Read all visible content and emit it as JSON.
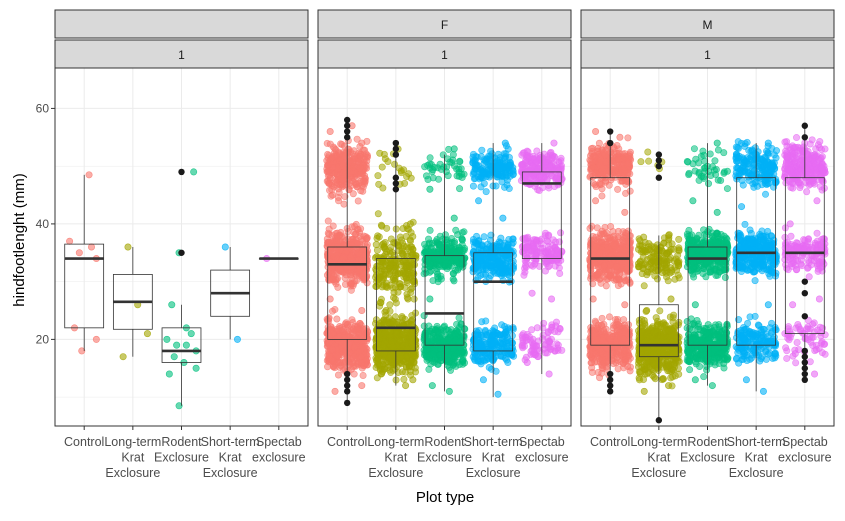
{
  "chart_data": {
    "type": "boxplot-jitter",
    "xlabel": "Plot type",
    "ylabel": "hindfootlenght (mm)",
    "ylim": [
      5,
      67
    ],
    "yticks": [
      20,
      40,
      60
    ],
    "grid": true,
    "legend": "none",
    "categories": [
      {
        "key": "Control",
        "lines": [
          "Control"
        ],
        "color": "#F8766D"
      },
      {
        "key": "Long-term Krat Exclosure",
        "lines": [
          "Long-term",
          "Krat",
          "Exclosure"
        ],
        "color": "#A3A500"
      },
      {
        "key": "Rodent Exclosure",
        "lines": [
          "Rodent",
          "Exclosure"
        ],
        "color": "#00BF7D"
      },
      {
        "key": "Short-term Krat Exclosure",
        "lines": [
          "Short-term",
          "Krat",
          "Exclosure"
        ],
        "color": "#00B0F6"
      },
      {
        "key": "Spectab exclosure",
        "lines": [
          "Spectab",
          "exclosure"
        ],
        "color": "#E76BF3"
      }
    ],
    "panels": [
      {
        "strip_top": "",
        "strip_bottom": "1",
        "groups": [
          {
            "q1": 22,
            "median": 34,
            "q3": 36.5,
            "lo": 18,
            "hi": 48.5,
            "outliers": [],
            "clusters": [],
            "points": [
              [
                37,
                -0.3
              ],
              [
                34,
                0.25
              ],
              [
                22,
                -0.2
              ],
              [
                20,
                0.25
              ],
              [
                18,
                -0.05
              ],
              [
                48.5,
                0.1
              ],
              [
                36,
                0.15
              ],
              [
                35,
                -0.1
              ]
            ]
          },
          {
            "q1": 21.75,
            "median": 26.5,
            "q3": 31.25,
            "lo": 17,
            "hi": 36,
            "outliers": [],
            "clusters": [],
            "points": [
              [
                36,
                -0.1
              ],
              [
                17,
                -0.2
              ],
              [
                21,
                0.3
              ],
              [
                26,
                0.1
              ]
            ]
          },
          {
            "q1": 16,
            "median": 18,
            "q3": 22,
            "lo": 8.5,
            "hi": 26,
            "outliers": [
              35,
              49
            ],
            "clusters": [],
            "points": [
              [
                49,
                0.25
              ],
              [
                35,
                -0.05
              ],
              [
                26,
                -0.2
              ],
              [
                22,
                0.1
              ],
              [
                20,
                -0.3
              ],
              [
                19,
                0.1
              ],
              [
                18,
                0.3
              ],
              [
                17,
                -0.15
              ],
              [
                16,
                0.05
              ],
              [
                15,
                0.3
              ],
              [
                14,
                -0.25
              ],
              [
                8.5,
                -0.05
              ],
              [
                21,
                0.2
              ],
              [
                19,
                -0.1
              ]
            ]
          },
          {
            "q1": 24,
            "median": 28,
            "q3": 32,
            "lo": 20,
            "hi": 36,
            "outliers": [],
            "clusters": [],
            "points": [
              [
                36,
                -0.1
              ],
              [
                20,
                0.15
              ]
            ]
          },
          {
            "q1": 34,
            "median": 34,
            "q3": 34,
            "lo": 34,
            "hi": 34,
            "outliers": [],
            "clusters": [],
            "points": [
              [
                34,
                -0.25
              ]
            ]
          }
        ]
      },
      {
        "strip_top": "F",
        "strip_bottom": "1",
        "groups": [
          {
            "q1": 20,
            "median": 33,
            "q3": 36,
            "lo": 9,
            "hi": 58,
            "outliers": [
              9,
              11,
              12,
              13,
              14,
              55,
              56,
              57,
              58
            ],
            "clusters": [
              {
                "center": 49.5,
                "spread": 3.5,
                "n": 300
              },
              {
                "center": 34,
                "spread": 4,
                "n": 420
              },
              {
                "center": 19,
                "spread": 3.5,
                "n": 400
              }
            ],
            "points": [
              [
                54,
                0.3
              ],
              [
                56,
                -0.35
              ],
              [
                57,
                0.1
              ],
              [
                45,
                -0.3
              ],
              [
                25,
                0.3
              ],
              [
                27,
                -0.35
              ],
              [
                12,
                0.3
              ],
              [
                11,
                -0.25
              ]
            ]
          },
          {
            "q1": 18,
            "median": 22,
            "q3": 34,
            "lo": 12,
            "hi": 52,
            "outliers": [
              46,
              47,
              48,
              52,
              53,
              54
            ],
            "clusters": [
              {
                "center": 49.5,
                "spread": 3,
                "n": 20
              },
              {
                "center": 33,
                "spread": 5,
                "n": 220
              },
              {
                "center": 19,
                "spread": 4,
                "n": 480
              }
            ],
            "points": [
              [
                12,
                0.2
              ],
              [
                14,
                -0.3
              ],
              [
                13,
                0.35
              ],
              [
                40,
                0.3
              ],
              [
                25,
                -0.2
              ],
              [
                27,
                0.25
              ]
            ]
          },
          {
            "q1": 19,
            "median": 24.5,
            "q3": 34.5,
            "lo": 11,
            "hi": 52,
            "outliers": [],
            "clusters": [
              {
                "center": 49.5,
                "spread": 2.5,
                "n": 40
              },
              {
                "center": 34.5,
                "spread": 3,
                "n": 240
              },
              {
                "center": 19,
                "spread": 3,
                "n": 320
              }
            ],
            "points": [
              [
                11,
                0.1
              ],
              [
                12,
                -0.25
              ],
              [
                53,
                0.2
              ],
              [
                46,
                -0.3
              ],
              [
                41,
                0.2
              ],
              [
                27,
                -0.3
              ]
            ]
          },
          {
            "q1": 18,
            "median": 30,
            "q3": 35,
            "lo": 10,
            "hi": 54,
            "outliers": [],
            "clusters": [
              {
                "center": 49.5,
                "spread": 2.5,
                "n": 160
              },
              {
                "center": 34,
                "spread": 3,
                "n": 240
              },
              {
                "center": 19,
                "spread": 3,
                "n": 200
              }
            ],
            "points": [
              [
                10.5,
                0.1
              ],
              [
                13,
                -0.2
              ],
              [
                54,
                0.25
              ],
              [
                44,
                -0.3
              ],
              [
                41,
                0.2
              ]
            ]
          },
          {
            "q1": 34,
            "median": 47,
            "q3": 49,
            "lo": 14,
            "hi": 54,
            "outliers": [],
            "clusters": [
              {
                "center": 49.5,
                "spread": 2.5,
                "n": 220
              },
              {
                "center": 35,
                "spread": 2.5,
                "n": 140
              },
              {
                "center": 20,
                "spread": 2.5,
                "n": 80
              }
            ],
            "points": [
              [
                14,
                0.15
              ],
              [
                16,
                -0.3
              ],
              [
                54,
                0.25
              ],
              [
                27,
                0.2
              ],
              [
                28,
                -0.2
              ]
            ]
          }
        ]
      },
      {
        "strip_top": "M",
        "strip_bottom": "1",
        "groups": [
          {
            "q1": 19,
            "median": 34,
            "q3": 48,
            "lo": 11,
            "hi": 56,
            "outliers": [
              11,
              12,
              13,
              14,
              54,
              56
            ],
            "clusters": [
              {
                "center": 50,
                "spread": 3,
                "n": 260
              },
              {
                "center": 34.5,
                "spread": 4,
                "n": 380
              },
              {
                "center": 19,
                "spread": 3.5,
                "n": 340
              }
            ],
            "points": [
              [
                56,
                -0.3
              ],
              [
                55,
                0.2
              ],
              [
                44,
                -0.3
              ],
              [
                26,
                0.3
              ],
              [
                27,
                -0.35
              ],
              [
                42,
                0.3
              ]
            ]
          },
          {
            "q1": 17,
            "median": 19,
            "q3": 26,
            "lo": 6,
            "hi": 38,
            "outliers": [
              6,
              48,
              50,
              51,
              52
            ],
            "clusters": [
              {
                "center": 50.5,
                "spread": 1.5,
                "n": 6
              },
              {
                "center": 34,
                "spread": 3,
                "n": 140
              },
              {
                "center": 18.5,
                "spread": 4,
                "n": 480
              }
            ],
            "points": [
              [
                12,
                0.2
              ],
              [
                11,
                -0.3
              ],
              [
                27,
                0.25
              ],
              [
                25,
                -0.25
              ],
              [
                38,
                0.2
              ]
            ]
          },
          {
            "q1": 19,
            "median": 34,
            "q3": 36,
            "lo": 12,
            "hi": 54,
            "outliers": [],
            "clusters": [
              {
                "center": 50,
                "spread": 3,
                "n": 40
              },
              {
                "center": 35,
                "spread": 3,
                "n": 360
              },
              {
                "center": 19,
                "spread": 3,
                "n": 340
              }
            ],
            "points": [
              [
                12,
                0.1
              ],
              [
                13,
                -0.25
              ],
              [
                54,
                0.2
              ],
              [
                44,
                -0.3
              ],
              [
                42,
                0.2
              ],
              [
                26,
                -0.25
              ]
            ]
          },
          {
            "q1": 19,
            "median": 35,
            "q3": 48,
            "lo": 11,
            "hi": 54,
            "outliers": [],
            "clusters": [
              {
                "center": 50,
                "spread": 3,
                "n": 180
              },
              {
                "center": 35,
                "spread": 3,
                "n": 280
              },
              {
                "center": 19.5,
                "spread": 3,
                "n": 160
              }
            ],
            "points": [
              [
                11,
                0.15
              ],
              [
                13,
                -0.2
              ],
              [
                54,
                0.25
              ],
              [
                43,
                -0.3
              ],
              [
                26,
                0.25
              ]
            ]
          },
          {
            "q1": 21,
            "median": 35,
            "q3": 48,
            "lo": 13,
            "hi": 57,
            "outliers": [
              13,
              14,
              15,
              16,
              17,
              18,
              24,
              28,
              30,
              55,
              57
            ],
            "clusters": [
              {
                "center": 50,
                "spread": 3,
                "n": 260
              },
              {
                "center": 35,
                "spread": 2.5,
                "n": 140
              },
              {
                "center": 20,
                "spread": 3,
                "n": 60
              }
            ],
            "points": [
              [
                44,
                0.25
              ],
              [
                40,
                -0.3
              ],
              [
                14,
                0.2
              ],
              [
                26,
                -0.25
              ],
              [
                27,
                0.3
              ]
            ]
          }
        ]
      }
    ]
  }
}
